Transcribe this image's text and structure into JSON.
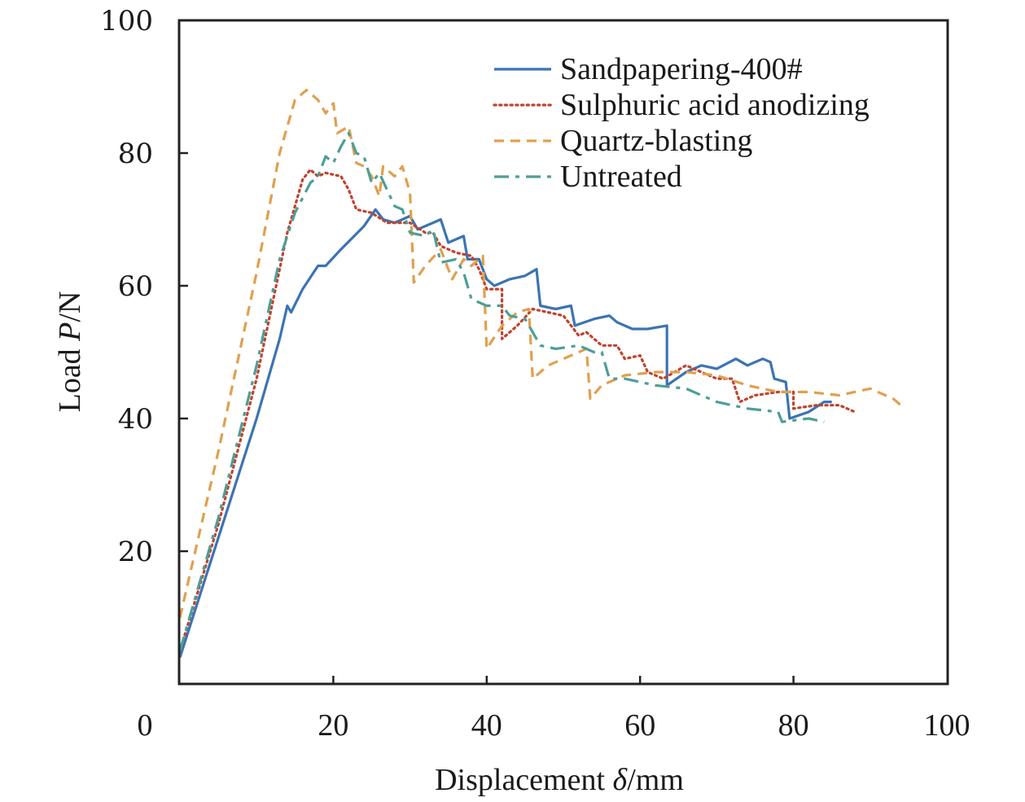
{
  "chart_data": {
    "type": "line",
    "title": "",
    "xlabel": "Displacement δ/mm",
    "xlabel_parts": {
      "prefix": "Displacement ",
      "symbol": "δ",
      "suffix": "/mm"
    },
    "ylabel": "Load P/N",
    "ylabel_parts": {
      "prefix": "Load ",
      "symbol": "P",
      "suffix": "/N"
    },
    "xlim": [
      0,
      100
    ],
    "ylim": [
      0,
      100
    ],
    "xticks": [
      0,
      20,
      40,
      60,
      80,
      100
    ],
    "xtick_labels": [
      "0",
      "20",
      "40",
      "60",
      "80",
      "100"
    ],
    "yticks": [
      0,
      20,
      40,
      60,
      80,
      100
    ],
    "ytick_labels": [
      "0",
      "20",
      "40",
      "60",
      "80",
      "100"
    ],
    "grid": false,
    "legend_position": "top-right",
    "series": [
      {
        "name": "Sandpapering-400#",
        "color": "#3b74b3",
        "style": "solid",
        "points": [
          [
            0,
            4
          ],
          [
            5,
            22
          ],
          [
            10,
            40
          ],
          [
            13,
            52
          ],
          [
            14,
            57
          ],
          [
            14.5,
            56
          ],
          [
            16,
            59.5
          ],
          [
            18,
            63
          ],
          [
            19,
            63
          ],
          [
            21,
            65.5
          ],
          [
            24,
            69
          ],
          [
            25.5,
            71.5
          ],
          [
            26.5,
            70
          ],
          [
            28,
            69.5
          ],
          [
            30,
            70.5
          ],
          [
            31,
            68.5
          ],
          [
            33,
            69.5
          ],
          [
            34,
            70
          ],
          [
            35,
            66.5
          ],
          [
            37,
            67.5
          ],
          [
            37.5,
            64
          ],
          [
            39,
            64
          ],
          [
            40,
            61
          ],
          [
            41,
            60
          ],
          [
            43,
            61
          ],
          [
            45,
            61.5
          ],
          [
            46.5,
            62.5
          ],
          [
            47,
            57
          ],
          [
            49,
            56.5
          ],
          [
            51,
            57
          ],
          [
            51.5,
            54
          ],
          [
            54,
            55
          ],
          [
            56,
            55.5
          ],
          [
            57,
            54.5
          ],
          [
            59,
            53.5
          ],
          [
            61,
            53.5
          ],
          [
            63.5,
            54
          ],
          [
            63.5,
            45
          ],
          [
            66,
            47
          ],
          [
            68,
            48
          ],
          [
            70,
            47.5
          ],
          [
            72.5,
            49
          ],
          [
            74,
            48
          ],
          [
            76,
            49
          ],
          [
            77,
            48.5
          ],
          [
            77.5,
            46
          ],
          [
            79,
            45.5
          ],
          [
            79.5,
            40
          ],
          [
            82,
            41
          ],
          [
            84,
            42.5
          ],
          [
            85,
            42.5
          ]
        ]
      },
      {
        "name": "Sulphuric acid anodizing",
        "color": "#c0432e",
        "style": "dotted",
        "points": [
          [
            0,
            5
          ],
          [
            5,
            24
          ],
          [
            10,
            46
          ],
          [
            14,
            68
          ],
          [
            16,
            76
          ],
          [
            17,
            77.5
          ],
          [
            18,
            76.5
          ],
          [
            19,
            77
          ],
          [
            21,
            76.5
          ],
          [
            22,
            74.5
          ],
          [
            23,
            71.5
          ],
          [
            25,
            71
          ],
          [
            27,
            69.5
          ],
          [
            30,
            69.5
          ],
          [
            32,
            68
          ],
          [
            33,
            68
          ],
          [
            34,
            66
          ],
          [
            36,
            65
          ],
          [
            38,
            64.5
          ],
          [
            39,
            62.5
          ],
          [
            40,
            59.5
          ],
          [
            42,
            59.5
          ],
          [
            42,
            52
          ],
          [
            44,
            54
          ],
          [
            46,
            56.5
          ],
          [
            48,
            56
          ],
          [
            50,
            55.5
          ],
          [
            52,
            52.5
          ],
          [
            53,
            53
          ],
          [
            55,
            51
          ],
          [
            57,
            51
          ],
          [
            58,
            49
          ],
          [
            60,
            49.5
          ],
          [
            61,
            47
          ],
          [
            63,
            46
          ],
          [
            66,
            48
          ],
          [
            68,
            47
          ],
          [
            70,
            46
          ],
          [
            72,
            46
          ],
          [
            73,
            42.5
          ],
          [
            75,
            43.5
          ],
          [
            78,
            44
          ],
          [
            80,
            44
          ],
          [
            80,
            41.5
          ],
          [
            83,
            42
          ],
          [
            86,
            42
          ],
          [
            88,
            41
          ]
        ]
      },
      {
        "name": "Quartz-blasting",
        "color": "#e0a04f",
        "style": "dashed",
        "points": [
          [
            0,
            10
          ],
          [
            5,
            35
          ],
          [
            10,
            62
          ],
          [
            13,
            80
          ],
          [
            15,
            88
          ],
          [
            16.5,
            89.5
          ],
          [
            18,
            88
          ],
          [
            19,
            86
          ],
          [
            20,
            87.5
          ],
          [
            20.5,
            83
          ],
          [
            22,
            84
          ],
          [
            23,
            78.5
          ],
          [
            24,
            78
          ],
          [
            25,
            76.5
          ],
          [
            26,
            73.5
          ],
          [
            26.5,
            78
          ],
          [
            28,
            76.5
          ],
          [
            29,
            78
          ],
          [
            30,
            74
          ],
          [
            30.5,
            60.5
          ],
          [
            32,
            63
          ],
          [
            34,
            65.5
          ],
          [
            35.5,
            61
          ],
          [
            37,
            64
          ],
          [
            38,
            63
          ],
          [
            39.5,
            64.5
          ],
          [
            40,
            50.5
          ],
          [
            42,
            54
          ],
          [
            44,
            56
          ],
          [
            45.5,
            56.5
          ],
          [
            46,
            46
          ],
          [
            48,
            48
          ],
          [
            50,
            49
          ],
          [
            53,
            50.5
          ],
          [
            53.5,
            43
          ],
          [
            55,
            45
          ],
          [
            58,
            46.5
          ],
          [
            62,
            47
          ],
          [
            66,
            47
          ],
          [
            70,
            46.5
          ],
          [
            74,
            45
          ],
          [
            78,
            44
          ],
          [
            82,
            44
          ],
          [
            86,
            43.5
          ],
          [
            90,
            44.5
          ],
          [
            93,
            43
          ],
          [
            94,
            42
          ]
        ]
      },
      {
        "name": "Untreated",
        "color": "#4e9e96",
        "style": "dashdot",
        "points": [
          [
            0,
            5
          ],
          [
            5,
            25
          ],
          [
            10,
            48
          ],
          [
            13,
            64
          ],
          [
            15,
            71
          ],
          [
            17,
            75.5
          ],
          [
            18,
            76.5
          ],
          [
            19,
            79.5
          ],
          [
            20,
            78.5
          ],
          [
            21,
            81
          ],
          [
            22,
            83
          ],
          [
            23,
            80
          ],
          [
            24,
            79.5
          ],
          [
            25,
            75.5
          ],
          [
            26,
            77
          ],
          [
            27,
            74.5
          ],
          [
            28,
            72
          ],
          [
            29,
            71.5
          ],
          [
            30,
            68
          ],
          [
            32,
            67.5
          ],
          [
            33,
            68.5
          ],
          [
            34,
            63.5
          ],
          [
            36,
            64
          ],
          [
            37,
            62
          ],
          [
            38,
            58
          ],
          [
            40,
            57
          ],
          [
            42,
            57
          ],
          [
            43,
            55.5
          ],
          [
            45,
            55
          ],
          [
            47,
            51
          ],
          [
            49,
            50.5
          ],
          [
            52,
            51
          ],
          [
            54,
            50
          ],
          [
            55,
            50
          ],
          [
            56,
            46
          ],
          [
            58,
            46
          ],
          [
            60,
            45.5
          ],
          [
            62,
            45
          ],
          [
            66,
            44.5
          ],
          [
            70,
            42.5
          ],
          [
            74,
            41.5
          ],
          [
            78,
            41
          ],
          [
            78.5,
            39.5
          ],
          [
            82,
            40
          ],
          [
            84,
            39.5
          ]
        ]
      }
    ]
  }
}
